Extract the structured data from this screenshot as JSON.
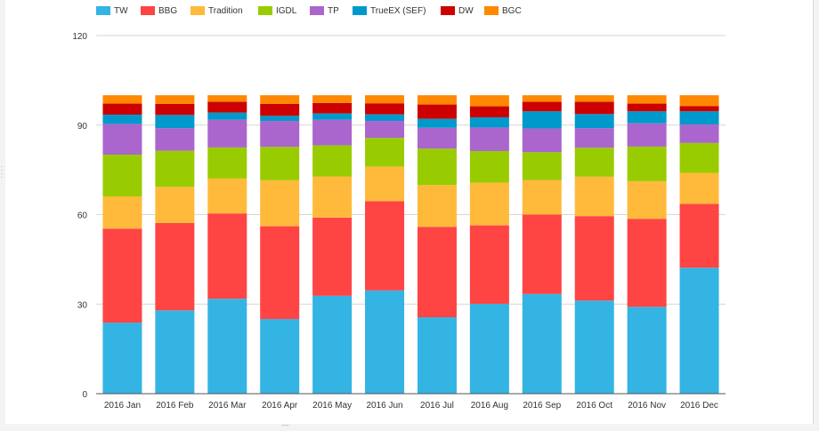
{
  "chart_data": {
    "type": "bar",
    "stacked": true,
    "categories": [
      "2016 Jan",
      "2016 Feb",
      "2016 Mar",
      "2016 Apr",
      "2016 May",
      "2016 Jun",
      "2016 Jul",
      "2016 Aug",
      "2016 Sep",
      "2016 Oct",
      "2016 Nov",
      "2016 Dec"
    ],
    "ylim": [
      0,
      120
    ],
    "yticks": [
      0,
      30,
      60,
      90,
      120
    ],
    "grid": true,
    "legend_position": "top-left",
    "series": [
      {
        "name": "TW",
        "color": "#33b4e3",
        "values": [
          23.8,
          27.9,
          31.8,
          25.0,
          32.8,
          34.6,
          25.6,
          30.1,
          33.4,
          31.2,
          29.1,
          42.2
        ]
      },
      {
        "name": "BBG",
        "color": "#ff4444",
        "values": [
          31.5,
          29.3,
          28.6,
          31.1,
          26.2,
          29.9,
          30.3,
          26.3,
          26.6,
          28.3,
          29.5,
          21.4
        ]
      },
      {
        "name": "Tradition",
        "color": "#ffba3b",
        "values": [
          10.8,
          12.1,
          11.7,
          15.4,
          13.8,
          11.6,
          14.0,
          14.3,
          11.6,
          13.2,
          12.6,
          10.4
        ]
      },
      {
        "name": "IGDL",
        "color": "#99cc00",
        "values": [
          14.0,
          12.1,
          10.4,
          11.2,
          10.4,
          9.6,
          12.2,
          10.6,
          9.3,
          9.7,
          11.6,
          10.0
        ]
      },
      {
        "name": "TP",
        "color": "#aa66cc",
        "values": [
          10.3,
          7.6,
          9.3,
          8.7,
          8.6,
          5.7,
          7.0,
          7.9,
          8.0,
          6.6,
          7.8,
          6.2
        ]
      },
      {
        "name": "TrueEX (SEF)",
        "color": "#0099cc",
        "values": [
          3.1,
          4.4,
          2.4,
          1.7,
          2.1,
          2.2,
          3.0,
          3.4,
          5.7,
          4.7,
          4.0,
          4.4
        ]
      },
      {
        "name": "DW",
        "color": "#cc0000",
        "values": [
          3.7,
          3.7,
          3.6,
          4.0,
          3.5,
          3.7,
          4.8,
          3.7,
          3.2,
          4.1,
          2.6,
          1.8
        ]
      },
      {
        "name": "BGC",
        "color": "#ff8800",
        "values": [
          2.8,
          2.9,
          2.2,
          2.9,
          2.6,
          2.7,
          3.1,
          3.7,
          2.2,
          2.2,
          2.8,
          3.6
        ]
      }
    ]
  }
}
